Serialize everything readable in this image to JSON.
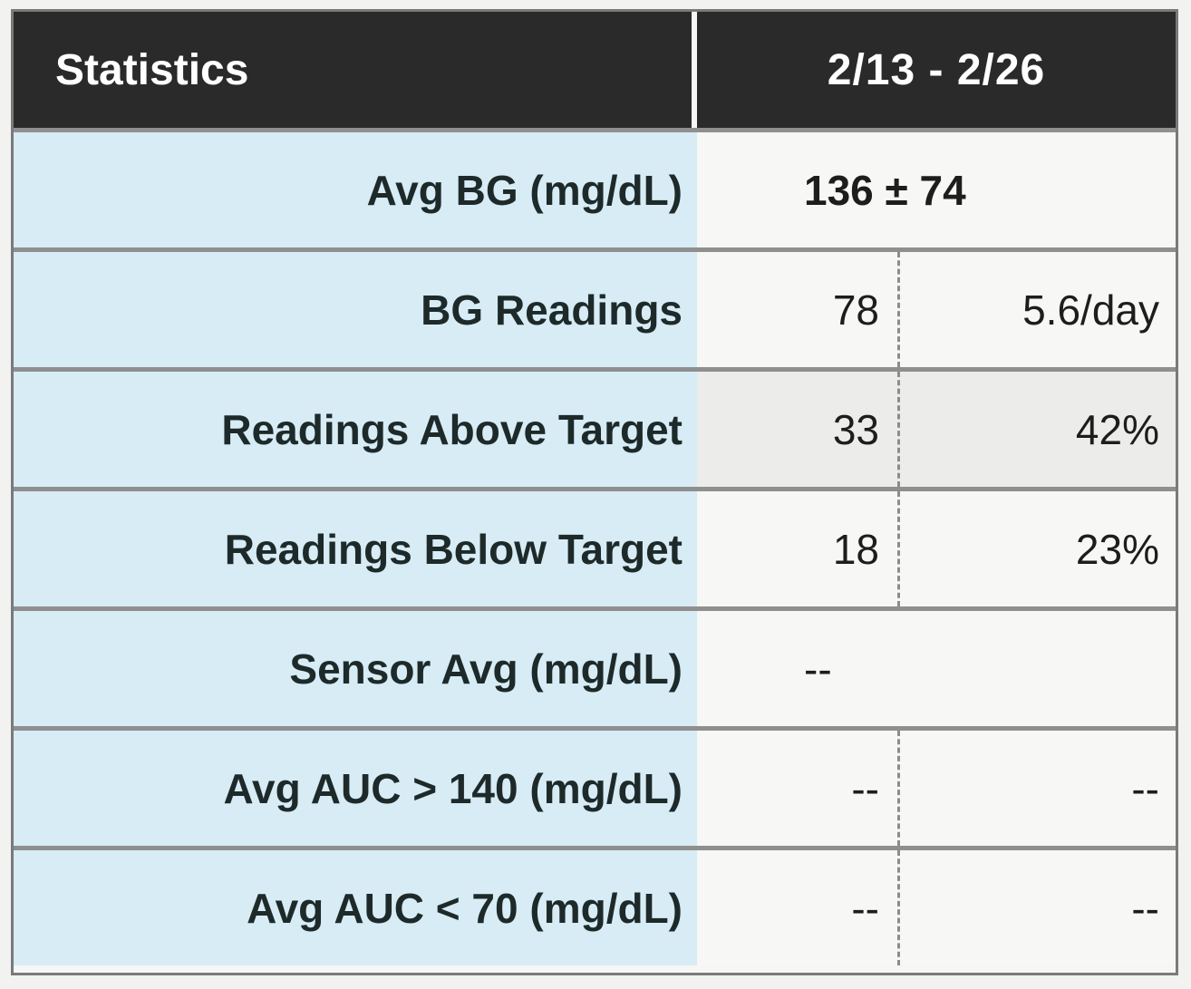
{
  "header": {
    "title": "Statistics",
    "date_range": "2/13  - 2/26"
  },
  "rows": [
    {
      "label": "Avg BG (mg/dL)",
      "value": "136 ± 74"
    },
    {
      "label": "BG Readings",
      "value_a": "78",
      "value_b": "5.6/day"
    },
    {
      "label": "Readings Above Target",
      "value_a": "33",
      "value_b": "42%"
    },
    {
      "label": "Readings Below Target",
      "value_a": "18",
      "value_b": "23%"
    },
    {
      "label": "Sensor Avg (mg/dL)",
      "value": "--"
    },
    {
      "label": "Avg AUC > 140 (mg/dL)",
      "value_a": "--",
      "value_b": "--"
    },
    {
      "label": "Avg AUC < 70 (mg/dL)",
      "value_a": "--",
      "value_b": "--"
    }
  ]
}
